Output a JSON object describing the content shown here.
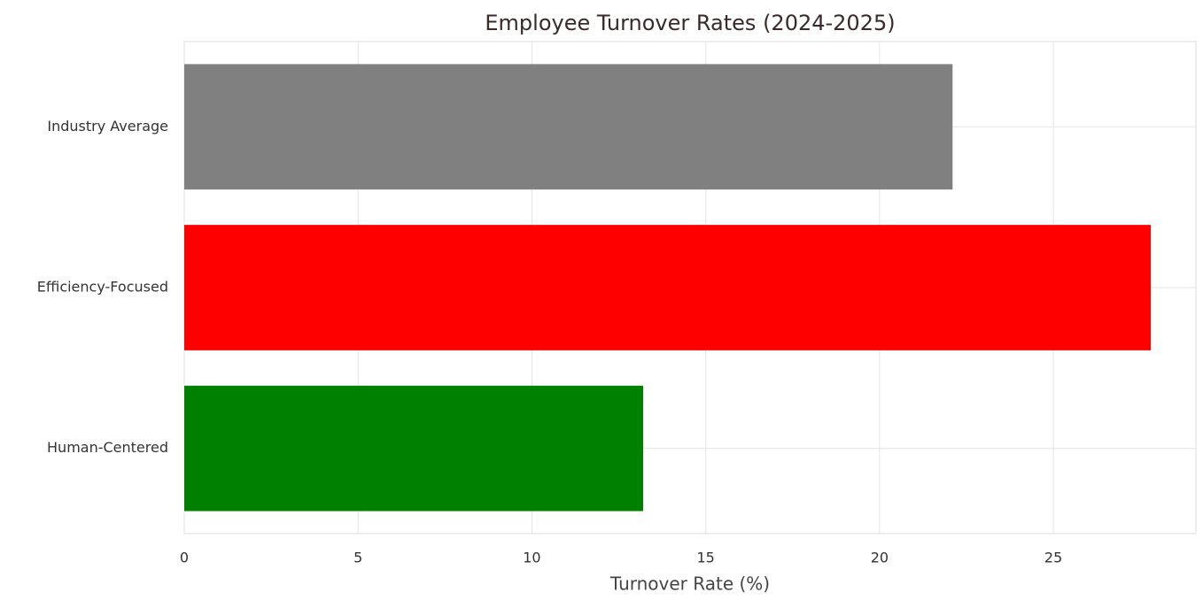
{
  "chart_data": {
    "type": "barh",
    "title": "Employee Turnover Rates (2024-2025)",
    "x_label": "Turnover Rate (%)",
    "categories": [
      "Industry Average",
      "Efficiency-Focused",
      "Human-Centered"
    ],
    "values": [
      22.1,
      27.8,
      13.2
    ],
    "colors": [
      "#808080",
      "#ff0000",
      "#008000"
    ],
    "xlim": [
      0,
      29.1
    ],
    "xticks": [
      0,
      5,
      10,
      15,
      20,
      25
    ],
    "grid": true
  }
}
